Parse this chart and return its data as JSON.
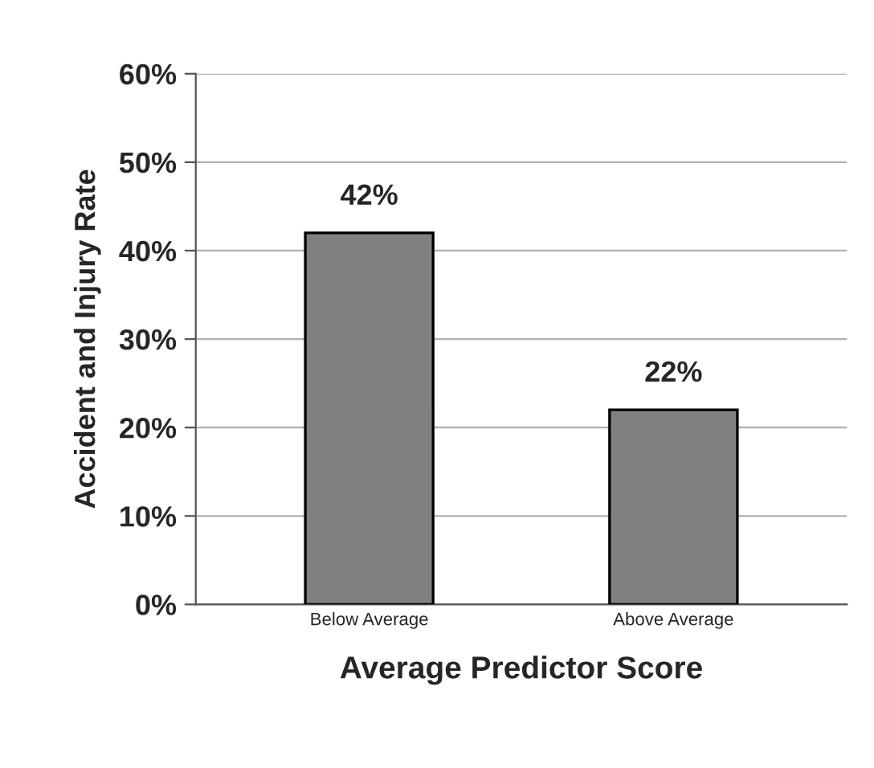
{
  "chart_data": {
    "type": "bar",
    "categories": [
      "Below Average",
      "Above Average"
    ],
    "values": [
      42,
      22
    ],
    "color": "#808080",
    "value_labels": [
      "42%",
      "22%"
    ],
    "xlabel": "Average Predictor Score",
    "ylabel": "Accident and Injury Rate",
    "ylim": [
      0,
      60
    ],
    "yticks": [
      {
        "value": 0,
        "label": "0%"
      },
      {
        "value": 10,
        "label": "10%"
      },
      {
        "value": 20,
        "label": "20%"
      },
      {
        "value": 30,
        "label": "30%"
      },
      {
        "value": 40,
        "label": "40%"
      },
      {
        "value": 50,
        "label": "50%"
      },
      {
        "value": 60,
        "label": "60%"
      }
    ],
    "grid": "y",
    "legend": false
  }
}
